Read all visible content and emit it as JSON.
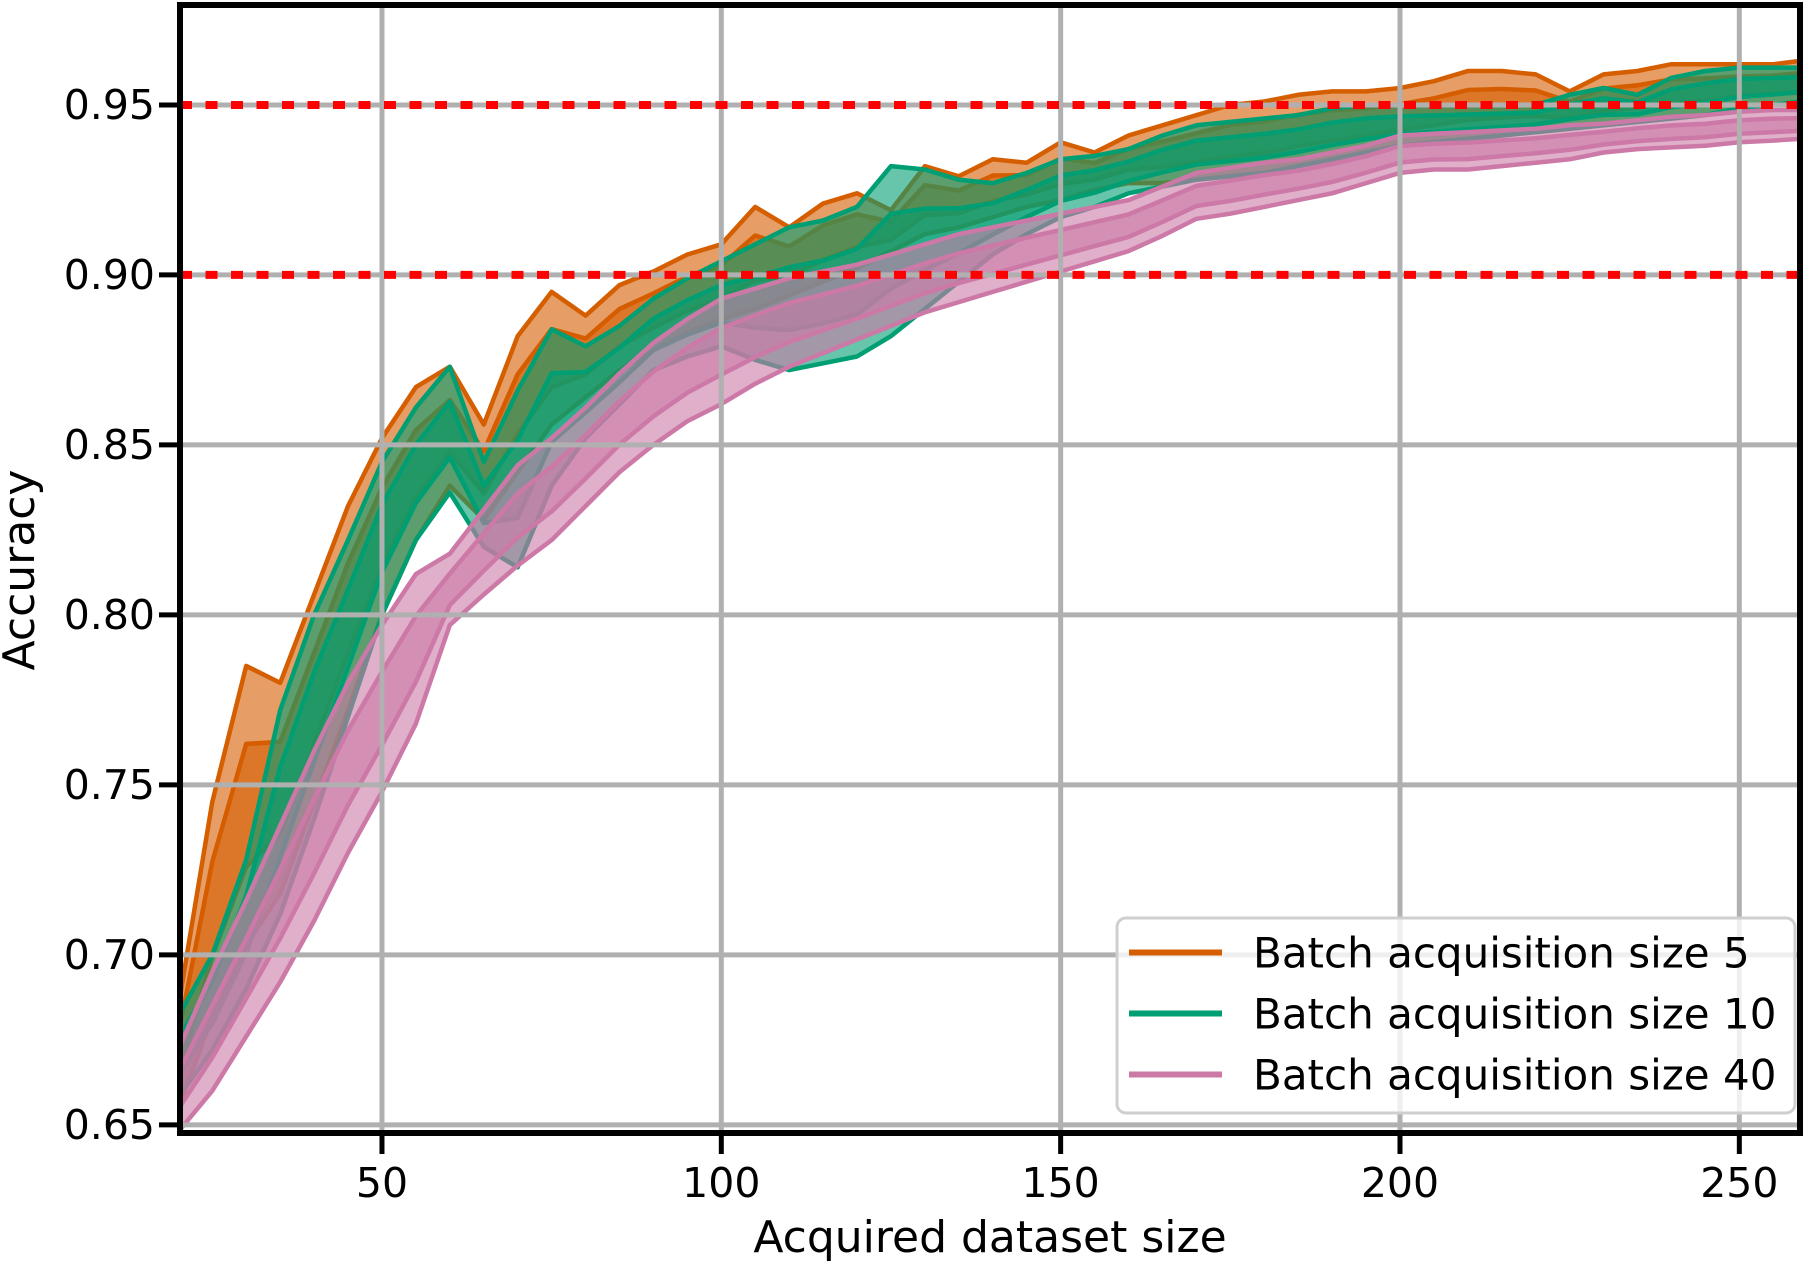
{
  "figure": {
    "background": "#ffffff"
  },
  "chart_data": {
    "type": "area",
    "title": "",
    "xlabel": "Acquired dataset size",
    "ylabel": "Accuracy",
    "xlim": [
      20.24,
      258.94
    ],
    "ylim": [
      0.6476,
      0.9794
    ],
    "grid": true,
    "grid_color": "#b0b0b0",
    "spine_color": "#000000",
    "xticks": [
      50,
      100,
      150,
      200,
      250
    ],
    "xtick_labels": [
      "50",
      "100",
      "150",
      "200",
      "250"
    ],
    "yticks": [
      0.65,
      0.7,
      0.75,
      0.8,
      0.85,
      0.9,
      0.95
    ],
    "ytick_labels": [
      "0.65",
      "0.70",
      "0.75",
      "0.80",
      "0.85",
      "0.90",
      "0.95"
    ],
    "reference_lines": [
      {
        "y": 0.9,
        "color": "#ff0000",
        "style": "dotted"
      },
      {
        "y": 0.95,
        "color": "#ff0000",
        "style": "dotted"
      }
    ],
    "x": [
      20,
      25,
      30,
      35,
      40,
      45,
      50,
      55,
      60,
      65,
      70,
      75,
      80,
      85,
      90,
      95,
      100,
      105,
      110,
      115,
      120,
      125,
      130,
      135,
      140,
      145,
      150,
      155,
      160,
      165,
      170,
      175,
      180,
      185,
      190,
      195,
      200,
      205,
      210,
      215,
      220,
      225,
      230,
      235,
      240,
      245,
      250,
      255,
      259
    ],
    "series": [
      {
        "name": "Batch acquisition size 5",
        "color": "#d55e00",
        "lo": [
          0.655,
          0.682,
          0.703,
          0.718,
          0.745,
          0.772,
          0.8,
          0.822,
          0.838,
          0.828,
          0.842,
          0.856,
          0.864,
          0.872,
          0.878,
          0.883,
          0.887,
          0.89,
          0.894,
          0.898,
          0.902,
          0.907,
          0.912,
          0.914,
          0.917,
          0.92,
          0.922,
          0.925,
          0.927,
          0.927,
          0.928,
          0.929,
          0.93,
          0.932,
          0.934,
          0.936,
          0.938,
          0.939,
          0.94,
          0.941,
          0.942,
          0.943,
          0.944,
          0.945,
          0.946,
          0.947,
          0.949,
          0.95,
          0.95
        ],
        "hi": [
          0.685,
          0.745,
          0.785,
          0.78,
          0.806,
          0.832,
          0.852,
          0.867,
          0.873,
          0.856,
          0.882,
          0.895,
          0.888,
          0.897,
          0.901,
          0.906,
          0.909,
          0.92,
          0.914,
          0.921,
          0.924,
          0.919,
          0.932,
          0.929,
          0.934,
          0.933,
          0.939,
          0.936,
          0.941,
          0.944,
          0.947,
          0.95,
          0.951,
          0.953,
          0.954,
          0.954,
          0.955,
          0.957,
          0.96,
          0.96,
          0.959,
          0.954,
          0.959,
          0.96,
          0.962,
          0.962,
          0.962,
          0.962,
          0.963
        ]
      },
      {
        "name": "Batch acquisition size 10",
        "color": "#009e73",
        "lo": [
          0.658,
          0.672,
          0.69,
          0.712,
          0.74,
          0.77,
          0.8,
          0.822,
          0.836,
          0.82,
          0.814,
          0.838,
          0.852,
          0.862,
          0.872,
          0.876,
          0.879,
          0.875,
          0.872,
          0.874,
          0.876,
          0.882,
          0.89,
          0.898,
          0.906,
          0.912,
          0.917,
          0.92,
          0.924,
          0.926,
          0.928,
          0.929,
          0.93,
          0.932,
          0.934,
          0.936,
          0.938,
          0.939,
          0.94,
          0.941,
          0.942,
          0.943,
          0.944,
          0.945,
          0.946,
          0.947,
          0.949,
          0.95,
          0.951
        ],
        "hi": [
          0.682,
          0.7,
          0.728,
          0.772,
          0.8,
          0.822,
          0.845,
          0.861,
          0.873,
          0.845,
          0.866,
          0.884,
          0.879,
          0.885,
          0.893,
          0.899,
          0.904,
          0.909,
          0.914,
          0.916,
          0.92,
          0.932,
          0.931,
          0.928,
          0.927,
          0.93,
          0.934,
          0.935,
          0.937,
          0.941,
          0.944,
          0.945,
          0.946,
          0.947,
          0.949,
          0.95,
          0.95,
          0.95,
          0.95,
          0.95,
          0.95,
          0.953,
          0.955,
          0.953,
          0.958,
          0.96,
          0.961,
          0.961,
          0.961
        ]
      },
      {
        "name": "Batch acquisition size 40",
        "color": "#cc79a7",
        "lo": [
          0.648,
          0.66,
          0.676,
          0.692,
          0.71,
          0.73,
          0.748,
          0.768,
          0.797,
          0.806,
          0.8145,
          0.822,
          0.832,
          0.842,
          0.85,
          0.857,
          0.862,
          0.868,
          0.873,
          0.877,
          0.881,
          0.885,
          0.889,
          0.892,
          0.895,
          0.898,
          0.901,
          0.904,
          0.907,
          0.9115,
          0.9165,
          0.918,
          0.92,
          0.922,
          0.924,
          0.927,
          0.93,
          0.931,
          0.931,
          0.932,
          0.933,
          0.934,
          0.936,
          0.937,
          0.9375,
          0.938,
          0.939,
          0.9395,
          0.94
        ],
        "hi": [
          0.672,
          0.695,
          0.716,
          0.738,
          0.76,
          0.78,
          0.797,
          0.812,
          0.818,
          0.831,
          0.844,
          0.852,
          0.861,
          0.871,
          0.88,
          0.887,
          0.893,
          0.896,
          0.899,
          0.901,
          0.903,
          0.906,
          0.909,
          0.912,
          0.914,
          0.916,
          0.918,
          0.92,
          0.922,
          0.926,
          0.93,
          0.9315,
          0.933,
          0.934,
          0.936,
          0.938,
          0.941,
          0.9415,
          0.942,
          0.9425,
          0.943,
          0.944,
          0.9445,
          0.9455,
          0.9465,
          0.947,
          0.948,
          0.9485,
          0.9485
        ]
      }
    ]
  },
  "legend": {
    "position": "lower-right",
    "border_color": "#cfcfcf",
    "background": "rgba(255,255,255,0.8)",
    "items": [
      {
        "label": "Batch acquisition size 5",
        "color": "#d55e00"
      },
      {
        "label": "Batch acquisition size 10",
        "color": "#009e73"
      },
      {
        "label": "Batch acquisition size 40",
        "color": "#cc79a7"
      }
    ]
  }
}
